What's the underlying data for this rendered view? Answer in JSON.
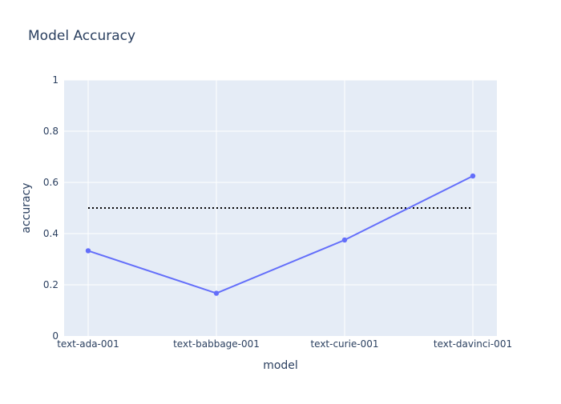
{
  "chart_data": {
    "type": "line",
    "title": "Model Accuracy",
    "xlabel": "model",
    "ylabel": "accuracy",
    "categories": [
      "text-ada-001",
      "text-babbage-001",
      "text-curie-001",
      "text-davinci-001"
    ],
    "series": [
      {
        "values": [
          0.333,
          0.167,
          0.375,
          0.625
        ],
        "color": "#636efa",
        "markers": true
      }
    ],
    "reference_line": {
      "y": 0.5,
      "style": "dotted",
      "color": "#000000"
    },
    "ylim": [
      0,
      1
    ],
    "yticks": [
      {
        "value": 0,
        "label": "0"
      },
      {
        "value": 0.2,
        "label": "0.2"
      },
      {
        "value": 0.4,
        "label": "0.4"
      },
      {
        "value": 0.6,
        "label": "0.6"
      },
      {
        "value": 0.8,
        "label": "0.8"
      },
      {
        "value": 1,
        "label": "1"
      }
    ],
    "grid": true,
    "plot_background": "#e5ecf6",
    "grid_color": "#ffffff"
  }
}
